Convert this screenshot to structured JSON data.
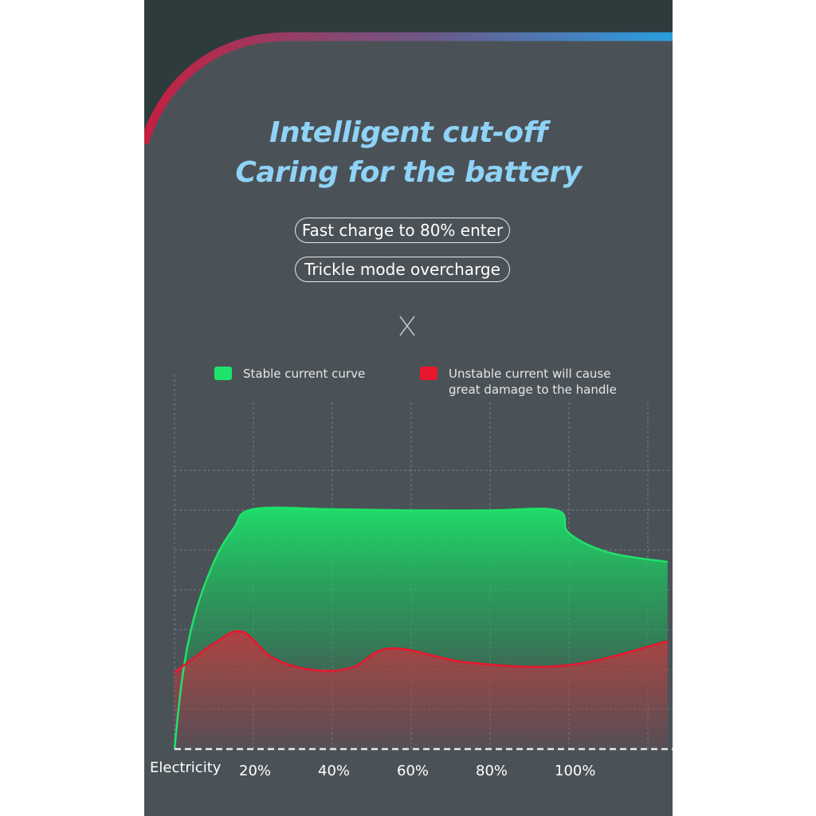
{
  "header": {
    "title_line1": "Intelligent cut-off",
    "title_line2": "Caring for the battery"
  },
  "pills": [
    "Fast charge to 80% enter",
    "Trickle mode overcharge"
  ],
  "divider_symbol": "X",
  "colors": {
    "panel_bg": "#4b5257",
    "title": "#8fd3f7",
    "stable_green": "#1de36a",
    "unstable_red": "#e8162e",
    "accent_blue": "#2a9ee0"
  },
  "chart_data": {
    "type": "area",
    "xlabel": "Electricity",
    "tick_labels": [
      "20%",
      "40%",
      "60%",
      "80%",
      "100%"
    ],
    "x": [
      0,
      20,
      40,
      60,
      80,
      97,
      100,
      125
    ],
    "xlim": [
      0,
      125
    ],
    "ylim": [
      0,
      100
    ],
    "grid": true,
    "legend_placement": "top",
    "series": [
      {
        "name": "Stable current curve",
        "color": "#1de36a",
        "points": [
          [
            0,
            0
          ],
          [
            2,
            30
          ],
          [
            5,
            55
          ],
          [
            10,
            78
          ],
          [
            15,
            92
          ],
          [
            20,
            100
          ],
          [
            40,
            100
          ],
          [
            60,
            99.5
          ],
          [
            80,
            99.5
          ],
          [
            97,
            99.5
          ],
          [
            100,
            90
          ],
          [
            110,
            82
          ],
          [
            125,
            78
          ]
        ]
      },
      {
        "name": "Unstable current will cause great damage to the handle",
        "color": "#e8162e",
        "points": [
          [
            0,
            32
          ],
          [
            5,
            38
          ],
          [
            10,
            44
          ],
          [
            17,
            49
          ],
          [
            25,
            38
          ],
          [
            35,
            33
          ],
          [
            45,
            34
          ],
          [
            55,
            42
          ],
          [
            75,
            36
          ],
          [
            100,
            35
          ],
          [
            125,
            45
          ]
        ]
      }
    ]
  }
}
